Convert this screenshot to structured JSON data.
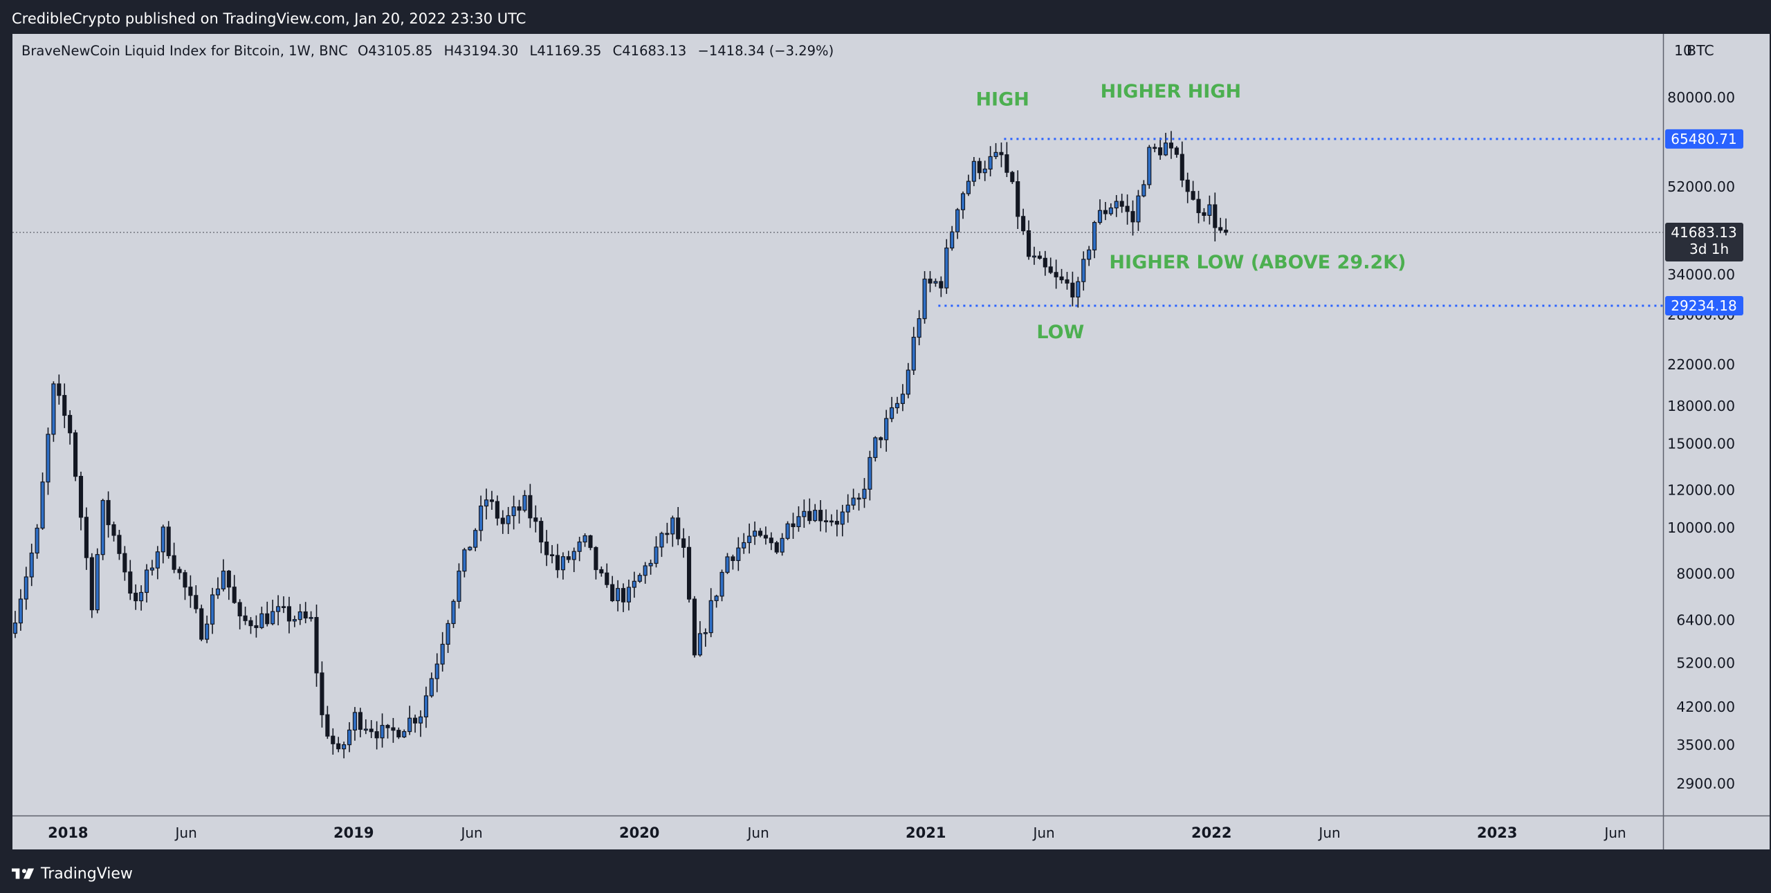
{
  "header": {
    "published_text": "CredibleCrypto published on TradingView.com, Jan 20, 2022 23:30 UTC"
  },
  "footer": {
    "brand": "TradingView",
    "logo_icon": "tradingview-logo-icon"
  },
  "legend": {
    "symbol_text": "BraveNewCoin Liquid Index for Bitcoin, 1W, BNC",
    "open": "O43105.85",
    "high": "H43194.30",
    "low": "L41169.35",
    "close": "C41683.13",
    "change": "−1418.34 (−3.29%)"
  },
  "price_scale": {
    "currency": "BTC",
    "currency_label_partial": "10",
    "last_price_label": "41683.13",
    "countdown_label": "3d 1h"
  },
  "colors": {
    "background": "#d1d4dc",
    "frame": "#1e222d",
    "up_candle": "#2f6fc6",
    "down_candle": "#131722",
    "annotation_green": "#4caf50",
    "level_line": "#2962ff",
    "last_price_badge": "#2a2e39"
  },
  "chart_data": {
    "type": "candlestick",
    "title": "",
    "symbol": "BraveNewCoin Liquid Index for Bitcoin",
    "interval": "1W",
    "scale": "log",
    "grid": false,
    "y_ticks": [
      2900,
      3500,
      4200,
      5200,
      6400,
      8000,
      10000,
      12000,
      15000,
      18000,
      22000,
      28000,
      34000,
      52000,
      80000
    ],
    "y_tick_labels": [
      "2900.00",
      "3500.00",
      "4200.00",
      "5200.00",
      "6400.00",
      "8000.00",
      "10000.00",
      "12000.00",
      "15000.00",
      "18000.00",
      "22000.00",
      "28000.00",
      "34000.00",
      "52000.00",
      "80000.00"
    ],
    "x_ticks": [
      {
        "date": "2018-01-01",
        "label": "2018"
      },
      {
        "date": "2018-06-01",
        "label": "Jun"
      },
      {
        "date": "2019-01-01",
        "label": "2019"
      },
      {
        "date": "2019-06-01",
        "label": "Jun"
      },
      {
        "date": "2020-01-01",
        "label": "2020"
      },
      {
        "date": "2020-06-01",
        "label": "Jun"
      },
      {
        "date": "2021-01-01",
        "label": "2021"
      },
      {
        "date": "2021-06-01",
        "label": "Jun"
      },
      {
        "date": "2022-01-01",
        "label": "2022"
      },
      {
        "date": "2022-06-01",
        "label": "Jun"
      },
      {
        "date": "2023-01-01",
        "label": "2023"
      },
      {
        "date": "2023-06-01",
        "label": "Jun"
      }
    ],
    "x_range": [
      "2017-10-22",
      "2023-08-01"
    ],
    "last_close": 41683.13,
    "price_path": [
      [
        "2017-10-22",
        6000
      ],
      [
        "2017-11-26",
        9700
      ],
      [
        "2017-12-17",
        19500
      ],
      [
        "2018-01-07",
        16000
      ],
      [
        "2018-02-04",
        7000
      ],
      [
        "2018-02-18",
        11000
      ],
      [
        "2018-03-11",
        9000
      ],
      [
        "2018-04-01",
        6800
      ],
      [
        "2018-05-06",
        9700
      ],
      [
        "2018-06-24",
        6100
      ],
      [
        "2018-07-22",
        8200
      ],
      [
        "2018-08-12",
        6300
      ],
      [
        "2018-09-30",
        6600
      ],
      [
        "2018-11-11",
        6350
      ],
      [
        "2018-11-25",
        4000
      ],
      [
        "2018-12-16",
        3300
      ],
      [
        "2019-01-06",
        4000
      ],
      [
        "2019-02-17",
        3650
      ],
      [
        "2019-03-31",
        4100
      ],
      [
        "2019-04-21",
        5300
      ],
      [
        "2019-05-19",
        8000
      ],
      [
        "2019-06-23",
        11500
      ],
      [
        "2019-07-14",
        10200
      ],
      [
        "2019-08-11",
        11200
      ],
      [
        "2019-09-22",
        8200
      ],
      [
        "2019-10-27",
        9300
      ],
      [
        "2019-11-24",
        7300
      ],
      [
        "2019-12-22",
        7200
      ],
      [
        "2020-01-26",
        9000
      ],
      [
        "2020-02-16",
        10200
      ],
      [
        "2020-03-01",
        8800
      ],
      [
        "2020-03-15",
        5300
      ],
      [
        "2020-04-05",
        6800
      ],
      [
        "2020-04-26",
        8700
      ],
      [
        "2020-05-24",
        9500
      ],
      [
        "2020-06-28",
        9200
      ],
      [
        "2020-07-26",
        11000
      ],
      [
        "2020-09-13",
        10400
      ],
      [
        "2020-10-11",
        11300
      ],
      [
        "2020-11-01",
        15000
      ],
      [
        "2020-12-06",
        19000
      ],
      [
        "2021-01-03",
        32000
      ],
      [
        "2021-01-24",
        33000
      ],
      [
        "2021-02-14",
        48000
      ],
      [
        "2021-03-07",
        57000
      ],
      [
        "2021-04-11",
        60000
      ],
      [
        "2021-04-25",
        51000
      ],
      [
        "2021-05-16",
        37000
      ],
      [
        "2021-06-20",
        33000
      ],
      [
        "2021-07-18",
        31500
      ],
      [
        "2021-08-08",
        44000
      ],
      [
        "2021-09-05",
        49000
      ],
      [
        "2021-09-26",
        44000
      ],
      [
        "2021-10-17",
        61000
      ],
      [
        "2021-11-07",
        63500
      ],
      [
        "2021-11-28",
        56000
      ],
      [
        "2021-12-12",
        48000
      ],
      [
        "2022-01-02",
        46500
      ],
      [
        "2022-01-16",
        41683
      ]
    ],
    "levels": [
      {
        "value": 65480.71,
        "label": "65480.71",
        "from": "2021-04-11"
      },
      {
        "value": 29234.18,
        "label": "29234.18",
        "from": "2021-01-17"
      }
    ],
    "annotations": [
      {
        "text": "HIGH",
        "date": "2021-04-09",
        "value": 77000
      },
      {
        "text": "HIGHER HIGH",
        "date": "2021-11-10",
        "value": 80000
      },
      {
        "text": "HIGHER LOW (ABOVE 29.2K)",
        "date": "2022-03-01",
        "value": 35000
      },
      {
        "text": "LOW",
        "date": "2021-06-22",
        "value": 25000
      }
    ]
  }
}
